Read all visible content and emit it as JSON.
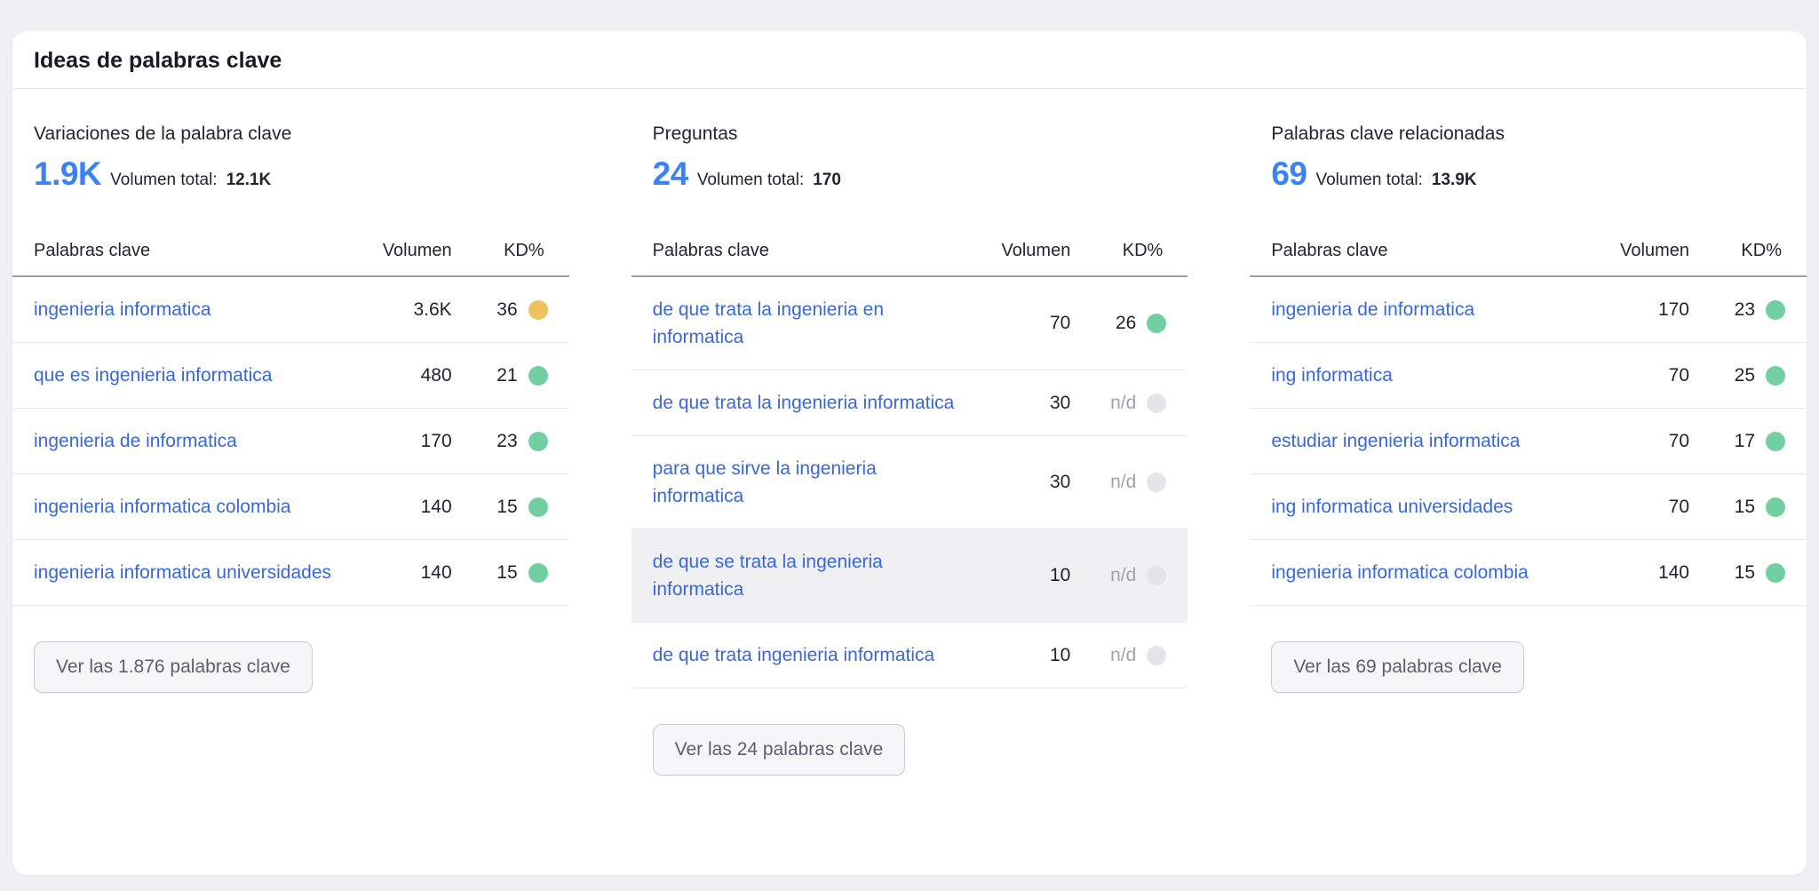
{
  "card": {
    "title": "Ideas de palabras clave",
    "volume_total_label": "Volumen total:",
    "table_headers": {
      "keyword": "Palabras clave",
      "volume": "Volumen",
      "kd": "KD%"
    },
    "columns": [
      {
        "title": "Variaciones de la palabra clave",
        "count": "1.9K",
        "total_volume": "12.1K",
        "button_label": "Ver las 1.876 palabras clave",
        "rows": [
          {
            "keyword": "ingenieria informatica",
            "volume": "3.6K",
            "kd": "36",
            "kd_level": "medium",
            "highlighted": false
          },
          {
            "keyword": "que es ingenieria informatica",
            "volume": "480",
            "kd": "21",
            "kd_level": "easy",
            "highlighted": false
          },
          {
            "keyword": "ingenieria de informatica",
            "volume": "170",
            "kd": "23",
            "kd_level": "easy",
            "highlighted": false
          },
          {
            "keyword": "ingenieria informatica colombia",
            "volume": "140",
            "kd": "15",
            "kd_level": "easy",
            "highlighted": false
          },
          {
            "keyword": "ingenieria informatica universidades",
            "volume": "140",
            "kd": "15",
            "kd_level": "easy",
            "highlighted": false
          }
        ]
      },
      {
        "title": "Preguntas",
        "count": "24",
        "total_volume": "170",
        "button_label": "Ver las 24 palabras clave",
        "rows": [
          {
            "keyword": "de que trata la ingenieria en informatica",
            "volume": "70",
            "kd": "26",
            "kd_level": "easy",
            "highlighted": false
          },
          {
            "keyword": "de que trata la ingenieria informatica",
            "volume": "30",
            "kd": "n/d",
            "kd_level": "na",
            "highlighted": false
          },
          {
            "keyword": "para que sirve la ingenieria informatica",
            "volume": "30",
            "kd": "n/d",
            "kd_level": "na",
            "highlighted": false
          },
          {
            "keyword": "de que se trata la ingenieria informatica",
            "volume": "10",
            "kd": "n/d",
            "kd_level": "na",
            "highlighted": true
          },
          {
            "keyword": "de que trata ingenieria informatica",
            "volume": "10",
            "kd": "n/d",
            "kd_level": "na",
            "highlighted": false
          }
        ]
      },
      {
        "title": "Palabras clave relacionadas",
        "count": "69",
        "total_volume": "13.9K",
        "button_label": "Ver las 69 palabras clave",
        "rows": [
          {
            "keyword": "ingenieria de informatica",
            "volume": "170",
            "kd": "23",
            "kd_level": "easy",
            "highlighted": false
          },
          {
            "keyword": "ing informatica",
            "volume": "70",
            "kd": "25",
            "kd_level": "easy",
            "highlighted": false
          },
          {
            "keyword": "estudiar ingenieria informatica",
            "volume": "70",
            "kd": "17",
            "kd_level": "easy",
            "highlighted": false
          },
          {
            "keyword": "ing informatica universidades",
            "volume": "70",
            "kd": "15",
            "kd_level": "easy",
            "highlighted": false
          },
          {
            "keyword": "ingenieria informatica colombia",
            "volume": "140",
            "kd": "15",
            "kd_level": "easy",
            "highlighted": false
          }
        ]
      }
    ]
  },
  "colors": {
    "page_bg": "#eef0f4",
    "card_bg": "#ffffff",
    "accent_blue": "#3b82f6",
    "link_blue": "#3968d6",
    "text_dark": "#1e222c",
    "muted_text": "#9ea3ad",
    "kd_easy": "#71cfa1",
    "kd_medium": "#f0c15c",
    "kd_na": "#e4e5e9",
    "separator": "#e8eaee",
    "header_rule": "#9a9ea8",
    "row_highlight": "#f0f0f3",
    "button_bg": "#f6f6f8",
    "button_border": "#c8cbd3",
    "button_text": "#595f6d"
  }
}
